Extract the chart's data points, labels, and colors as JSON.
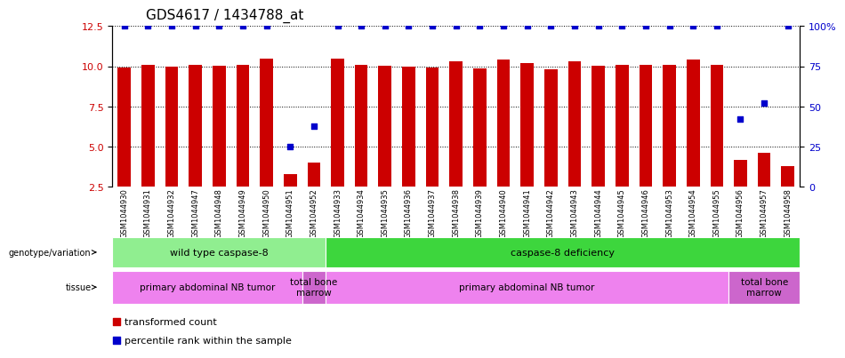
{
  "title": "GDS4617 / 1434788_at",
  "samples": [
    "GSM1044930",
    "GSM1044931",
    "GSM1044932",
    "GSM1044947",
    "GSM1044948",
    "GSM1044949",
    "GSM1044950",
    "GSM1044951",
    "GSM1044952",
    "GSM1044933",
    "GSM1044934",
    "GSM1044935",
    "GSM1044936",
    "GSM1044937",
    "GSM1044938",
    "GSM1044939",
    "GSM1044940",
    "GSM1044941",
    "GSM1044942",
    "GSM1044943",
    "GSM1044944",
    "GSM1044945",
    "GSM1044946",
    "GSM1044953",
    "GSM1044954",
    "GSM1044955",
    "GSM1044956",
    "GSM1044957",
    "GSM1044958"
  ],
  "transformed_count": [
    9.9,
    10.1,
    10.0,
    10.1,
    10.05,
    10.1,
    10.5,
    3.3,
    4.0,
    10.5,
    10.1,
    10.05,
    10.0,
    9.9,
    10.3,
    9.85,
    10.4,
    10.2,
    9.8,
    10.3,
    10.05,
    10.1,
    10.1,
    10.1,
    10.4,
    10.1,
    4.2,
    4.6,
    3.8
  ],
  "percentile_rank": [
    100,
    100,
    100,
    100,
    100,
    100,
    100,
    25,
    38,
    100,
    100,
    100,
    100,
    100,
    100,
    100,
    100,
    100,
    100,
    100,
    100,
    100,
    100,
    100,
    100,
    100,
    42,
    52,
    100
  ],
  "bar_color": "#cc0000",
  "dot_color": "#0000cc",
  "ylim_left": [
    2.5,
    12.5
  ],
  "yticks_left": [
    2.5,
    5.0,
    7.5,
    10.0,
    12.5
  ],
  "ylim_right": [
    0,
    100
  ],
  "yticks_right": [
    0,
    25,
    50,
    75,
    100
  ],
  "ylabel_right_labels": [
    "0",
    "25",
    "50",
    "75",
    "100%"
  ],
  "title_fontsize": 11,
  "bar_width": 0.55,
  "genotype_groups": [
    {
      "label": "wild type caspase-8",
      "start": 0,
      "end": 8,
      "color": "#90ee90"
    },
    {
      "label": "caspase-8 deficiency",
      "start": 9,
      "end": 28,
      "color": "#3dd63d"
    }
  ],
  "tissue_groups": [
    {
      "label": "primary abdominal NB tumor",
      "start": 0,
      "end": 7,
      "color": "#ee82ee"
    },
    {
      "label": "total bone\nmarrow",
      "start": 8,
      "end": 8,
      "color": "#cc66cc"
    },
    {
      "label": "primary abdominal NB tumor",
      "start": 9,
      "end": 25,
      "color": "#ee82ee"
    },
    {
      "label": "total bone\nmarrow",
      "start": 26,
      "end": 28,
      "color": "#cc66cc"
    }
  ],
  "legend_items": [
    {
      "color": "#cc0000",
      "label": "transformed count"
    },
    {
      "color": "#0000cc",
      "label": "percentile rank within the sample"
    }
  ],
  "genotype_label": "genotype/variation",
  "tissue_label": "tissue",
  "xticklabel_bg": "#d0d0d0"
}
